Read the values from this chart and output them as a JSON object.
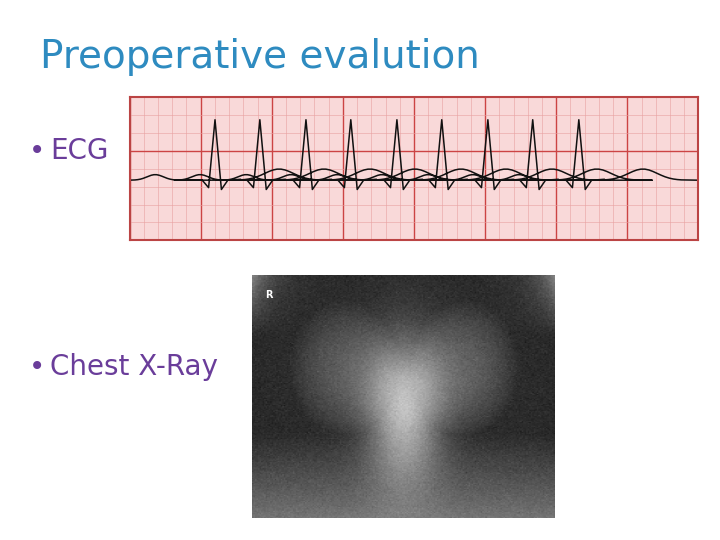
{
  "title": "Preoperative evalution",
  "title_color": "#2E8BC0",
  "title_fontsize": 28,
  "bullet1_text": "ECG",
  "bullet2_text": "Chest X-Ray",
  "bullet_color": "#6A3D9A",
  "bullet_fontsize": 20,
  "bg_color": "#ffffff",
  "ecg_bg_color": "#f9d9d9",
  "ecg_grid_major_color": "#cc4444",
  "ecg_grid_minor_color": "#e8a0a0",
  "ecg_line_color": "#111111",
  "ecg_border_color": "#bb4444"
}
